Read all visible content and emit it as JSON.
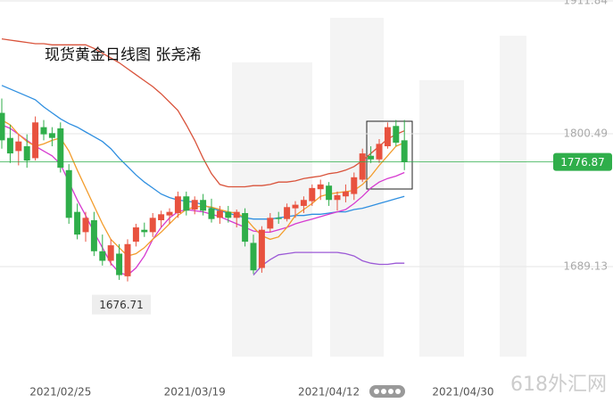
{
  "chart_data": {
    "type": "candlestick",
    "title": "现货黄金日线图 张尧浠",
    "watermark": "618外汇网",
    "up_color": "#e8523f",
    "down_color": "#2fae4a",
    "categories": [
      null,
      null,
      null,
      null,
      null,
      null,
      null,
      "2021/02/25",
      null,
      null,
      null,
      null,
      null,
      null,
      null,
      null,
      null,
      null,
      null,
      null,
      null,
      null,
      null,
      "2021/03/19",
      null,
      null,
      null,
      null,
      null,
      null,
      null,
      null,
      null,
      null,
      null,
      null,
      null,
      null,
      null,
      "2021/04/12",
      null,
      null,
      null,
      null,
      null,
      null,
      null,
      null,
      null,
      null,
      null,
      null,
      null,
      null,
      null,
      "2021/04/30"
    ],
    "open": [
      1818,
      1797,
      1786,
      1790,
      1780,
      1806,
      1801,
      1805,
      1770,
      1735,
      1718,
      1728,
      1702,
      1694,
      1700,
      1681,
      1710,
      1720,
      1718,
      1728,
      1732,
      1734,
      1748,
      1737,
      1745,
      1738,
      1730,
      1735,
      1730,
      1734,
      1709,
      1688,
      1721,
      1730,
      1729,
      1738,
      1740,
      1744,
      1754,
      1757,
      1745,
      1748,
      1750,
      1762,
      1782,
      1779,
      1790,
      1807,
      1795,
      null,
      null,
      null,
      null,
      null,
      null,
      null
    ],
    "high": [
      1830,
      1808,
      1800,
      1800,
      1815,
      1812,
      1806,
      1810,
      1775,
      1742,
      1735,
      1735,
      1716,
      1712,
      1708,
      1712,
      1725,
      1726,
      1734,
      1736,
      1738,
      1752,
      1752,
      1748,
      1750,
      1746,
      1740,
      1740,
      1737,
      1738,
      1716,
      1723,
      1734,
      1735,
      1742,
      1744,
      1748,
      1758,
      1762,
      1760,
      1752,
      1758,
      1768,
      1788,
      1790,
      1796,
      1810,
      1812,
      1812,
      null,
      null,
      null,
      null,
      null,
      null,
      null
    ],
    "low": [
      1788,
      1776,
      1774,
      1772,
      1778,
      1795,
      1790,
      1768,
      1725,
      1712,
      1710,
      1698,
      1690,
      1690,
      1678,
      1676.71,
      1706,
      1714,
      1714,
      1722,
      1725,
      1730,
      1732,
      1733,
      1732,
      1726,
      1725,
      1726,
      1722,
      1706,
      1683,
      1684,
      1718,
      1725,
      1727,
      1730,
      1734,
      1740,
      1745,
      1740,
      1736,
      1743,
      1745,
      1760,
      1776,
      1776,
      1788,
      1790,
      1770,
      null,
      null,
      null,
      null,
      null,
      null,
      null
    ],
    "close": [
      1795,
      1784,
      1794,
      1778,
      1810,
      1800,
      1797,
      1772,
      1730,
      1716,
      1730,
      1702,
      1694,
      1707,
      1682,
      1708,
      1722,
      1718,
      1730,
      1733,
      1735,
      1748,
      1736,
      1745,
      1736,
      1729,
      1736,
      1730,
      1735,
      1710,
      1686,
      1720,
      1730,
      1729,
      1739,
      1741,
      1745,
      1755,
      1758,
      1745,
      1749,
      1752,
      1764,
      1784,
      1779,
      1792,
      1806,
      1793,
      1776.87,
      null,
      null,
      null,
      null,
      null,
      null,
      null
    ],
    "lines": [
      {
        "color": "#d9533b",
        "values": [
          1880,
          1879,
          1878,
          1877,
          1876,
          1876,
          1875,
          1875,
          1875,
          1875,
          1875,
          1872,
          1868,
          1864,
          1860,
          1855,
          1850,
          1845,
          1840,
          1834,
          1827,
          1820,
          1808,
          1795,
          1780,
          1767,
          1758,
          1756,
          1756,
          1756,
          1757,
          1757,
          1758,
          1760,
          1760,
          1761,
          1763,
          1764,
          1765,
          1767,
          1768,
          1770,
          1773,
          1778,
          1784,
          1790,
          1796,
          1800,
          1803,
          null,
          null,
          null,
          null,
          null,
          null,
          null
        ]
      },
      {
        "color": "#2f8fe0",
        "values": [
          1841,
          1838,
          1835,
          1832,
          1829,
          1823,
          1818,
          1813,
          1809,
          1806,
          1802,
          1798,
          1794,
          1788,
          1780,
          1773,
          1766,
          1760,
          1755,
          1750,
          1747,
          1745,
          1744,
          1743,
          1741,
          1738,
          1736,
          1734,
          1732,
          1730,
          1729,
          1729,
          1729,
          1730,
          1731,
          1732,
          1732,
          1733,
          1733,
          1734,
          1735,
          1735,
          1737,
          1738,
          1740,
          1742,
          1744,
          1746,
          1748,
          null,
          null,
          null,
          null,
          null,
          null,
          null
        ]
      },
      {
        "color": "#d63ad0",
        "values": [
          1808,
          1805,
          1800,
          1795,
          1790,
          1786,
          1782,
          1775,
          1760,
          1745,
          1732,
          1718,
          1705,
          1692,
          1684,
          1682,
          1688,
          1698,
          1712,
          1722,
          1730,
          1735,
          1737,
          1736,
          1735,
          1733,
          1731,
          1728,
          1725,
          1722,
          1719,
          1718,
          1718,
          1720,
          1722,
          1725,
          1727,
          1729,
          1731,
          1733,
          1735,
          1737,
          1742,
          1748,
          1755,
          1760,
          1763,
          1765,
          1768,
          null,
          null,
          null,
          null,
          null,
          null,
          null
        ]
      },
      {
        "color": "#9b59d6",
        "values": [
          null,
          null,
          null,
          null,
          null,
          null,
          null,
          null,
          null,
          null,
          null,
          null,
          null,
          null,
          null,
          null,
          null,
          null,
          null,
          null,
          null,
          null,
          null,
          null,
          null,
          null,
          null,
          null,
          null,
          null,
          1682,
          1690,
          1695,
          1699,
          1700,
          1701,
          1701,
          1701,
          1701,
          1701,
          1701,
          1700,
          1698,
          1694,
          1692,
          1691,
          1691,
          1692,
          1692,
          null,
          null,
          null,
          null,
          null,
          null,
          null
        ]
      },
      {
        "color": "#f39c2b",
        "values": [
          1812,
          1808,
          1800,
          1794,
          1790,
          1792,
          1795,
          1797,
          1786,
          1770,
          1755,
          1740,
          1725,
          1712,
          1705,
          1698,
          1700,
          1705,
          1712,
          1718,
          1725,
          1732,
          1737,
          1739,
          1740,
          1739,
          1737,
          1735,
          1734,
          1730,
          1722,
          1715,
          1712,
          1714,
          1722,
          1732,
          1737,
          1742,
          1748,
          1750,
          1751,
          1752,
          1753,
          1758,
          1765,
          1774,
          1782,
          1790,
          1793,
          null,
          null,
          null,
          null,
          null,
          null,
          null
        ]
      }
    ],
    "ylim": [
      1574.8,
      1912.6
    ],
    "yticks": [
      1689.13,
      1800.49,
      1911.84
    ],
    "grid": true
  }
}
